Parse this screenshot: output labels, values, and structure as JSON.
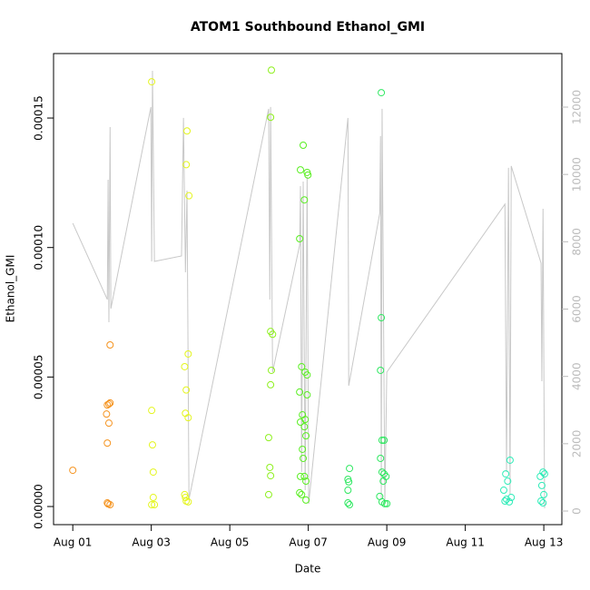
{
  "chart_data": {
    "type": "scatter",
    "title": "ATOM1 Southbound Ethanol_GMI",
    "x_label": "Date",
    "y_label": "Ethanol_GMI",
    "xlim": [
      0.51,
      13.46
    ],
    "xticks": [
      {
        "value": 1,
        "label": "Aug 01"
      },
      {
        "value": 3,
        "label": "Aug 03"
      },
      {
        "value": 5,
        "label": "Aug 05"
      },
      {
        "value": 7,
        "label": "Aug 07"
      },
      {
        "value": 9,
        "label": "Aug 09"
      },
      {
        "value": 11,
        "label": "Aug 11"
      },
      {
        "value": 13,
        "label": "Aug 13"
      }
    ],
    "ylim": [
      -7e-06,
      0.0001749
    ],
    "yticks": [
      {
        "value": 0,
        "label": "0.00000"
      },
      {
        "value": 5e-05,
        "label": "0.00005"
      },
      {
        "value": 0.0001,
        "label": "0.00010"
      },
      {
        "value": 0.00015,
        "label": "0.00015"
      }
    ],
    "y2lim": [
      -404,
      13591
    ],
    "y2ticks": [
      0,
      2000,
      4000,
      6000,
      8000,
      10000,
      12000
    ],
    "series": [
      {
        "type": "line",
        "axis": "y2",
        "color": "#c8c8c8",
        "x": [
          1.0,
          1.88,
          1.9,
          1.92,
          1.95,
          1.97,
          2.99,
          3.01,
          3.03,
          3.08,
          3.77,
          3.82,
          3.87,
          3.91,
          3.96,
          5.99,
          6.02,
          6.04,
          6.09,
          6.78,
          6.8,
          6.83,
          6.87,
          6.92,
          6.97,
          7.01,
          8.01,
          8.03,
          8.82,
          8.84,
          8.86,
          8.88,
          8.95,
          9.0,
          12.01,
          12.05,
          12.1,
          12.14,
          12.17,
          12.93,
          12.95,
          12.98,
          13.02
        ],
        "values": [
          8550,
          6284,
          9844,
          5610,
          11408,
          6014,
          12002,
          7417,
          13080,
          7417,
          7579,
          11678,
          7093,
          9520,
          351,
          11948,
          6284,
          12002,
          4126,
          7902,
          9655,
          1160,
          9790,
          620,
          9925,
          216,
          11678,
          3722,
          8846,
          11139,
          351,
          11948,
          216,
          4126,
          9116,
          1160,
          10195,
          485,
          10249,
          7363,
          3857,
          8981,
          81
        ]
      },
      {
        "color": "#f5931e",
        "x": [
          1.0,
          1.88,
          1.92,
          1.86,
          1.92,
          1.88,
          1.95,
          1.95,
          1.88,
          1.95,
          1.9
        ],
        "values": [
          1.4e-05,
          3.92e-05,
          3.96e-05,
          3.57e-05,
          3.22e-05,
          2.45e-05,
          6.24e-05,
          4e-05,
          1.4e-06,
          7e-07,
          1e-06
        ]
      },
      {
        "color": "#e4f51e",
        "x": [
          3.01,
          3.01,
          3.03,
          3.05,
          3.05,
          3.01,
          3.08,
          3.91,
          3.89,
          3.96,
          3.94,
          3.85,
          3.89,
          3.87,
          3.94,
          3.85,
          3.89,
          3.94,
          3.87
        ],
        "values": [
          0.000164,
          3.71e-05,
          2.38e-05,
          1.33e-05,
          3.5e-06,
          7e-07,
          7e-07,
          0.000145,
          0.000132,
          0.00012,
          5.89e-05,
          5.4e-05,
          4.5e-05,
          3.6e-05,
          3.43e-05,
          4.6e-06,
          2.1e-06,
          1.8e-06,
          3.5e-06
        ]
      },
      {
        "color": "#8ef01e",
        "x": [
          6.06,
          6.04,
          6.04,
          6.09,
          6.06,
          6.04,
          5.99,
          6.02,
          6.04,
          5.99
        ],
        "values": [
          0.0001685,
          0.0001503,
          6.76e-05,
          6.65e-05,
          5.26e-05,
          4.7e-05,
          2.66e-05,
          1.51e-05,
          1.19e-05,
          4.6e-06
        ]
      },
      {
        "color": "#5aee22",
        "x": [
          6.87,
          6.8,
          6.97,
          6.99,
          6.9,
          6.78,
          6.83,
          6.92,
          6.97,
          6.78,
          6.97,
          6.85,
          6.92,
          6.8,
          6.9,
          6.94,
          6.85,
          6.87,
          6.8,
          6.9,
          6.94,
          6.78,
          6.83,
          6.94
        ],
        "values": [
          0.0001395,
          0.00013,
          0.000129,
          0.000128,
          0.0001184,
          0.0001034,
          5.4e-05,
          5.19e-05,
          5.08e-05,
          4.42e-05,
          4.31e-05,
          3.54e-05,
          3.36e-05,
          3.26e-05,
          3.08e-05,
          2.73e-05,
          2.21e-05,
          1.86e-05,
          1.16e-05,
          1.16e-05,
          9.8e-06,
          5.3e-06,
          4.6e-06,
          2.5e-06
        ]
      },
      {
        "color": "#2ee860",
        "x": [
          8.01,
          8.03,
          8.05,
          8.01,
          8.01,
          8.05,
          8.86,
          8.86,
          8.84,
          8.88,
          8.93,
          8.84,
          8.82,
          8.88,
          8.93,
          8.98,
          8.88,
          8.95,
          9.0,
          8.91
        ],
        "values": [
          1.05e-05,
          9.5e-06,
          1.47e-05,
          6.3e-06,
          1.4e-06,
          7e-07,
          0.0001598,
          7.29e-05,
          5.26e-05,
          2.56e-05,
          2.56e-05,
          1.86e-05,
          3.9e-06,
          1.33e-05,
          1.26e-05,
          1.16e-05,
          1.8e-06,
          1.1e-06,
          1.1e-06,
          9.8e-06
        ]
      },
      {
        "color": "#2eecb8",
        "x": [
          12.14,
          12.03,
          12.08,
          11.98,
          12.05,
          12.12,
          12.01,
          12.17,
          12.98,
          13.02,
          12.95,
          13.0,
          12.93,
          12.98,
          12.91
        ],
        "values": [
          1.79e-05,
          1.26e-05,
          9.8e-06,
          6.3e-06,
          2.8e-06,
          1.8e-06,
          2.1e-06,
          3.5e-06,
          1.33e-05,
          1.26e-05,
          8.1e-06,
          4.6e-06,
          2.1e-06,
          1.4e-06,
          1.16e-05
        ]
      }
    ]
  }
}
